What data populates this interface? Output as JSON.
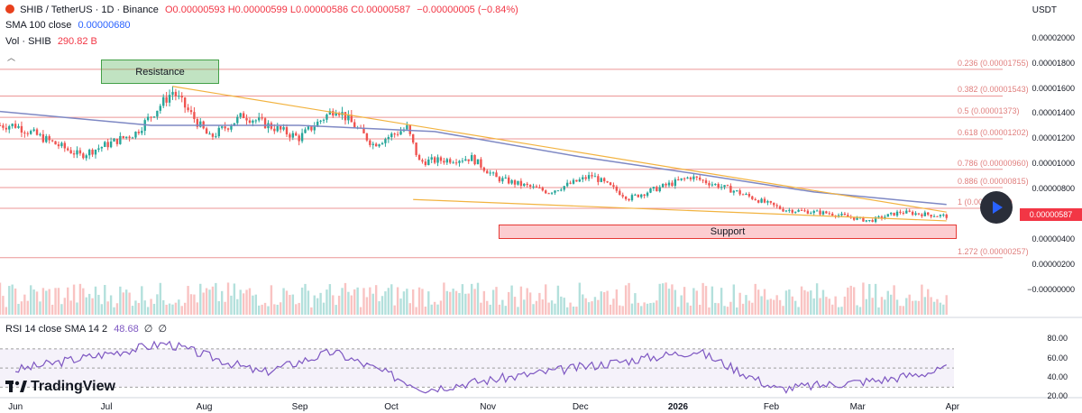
{
  "header": {
    "symbol": "SHIB / TetherUS · 1D · Binance",
    "ohlc": "O0.00000593 H0.00000599 L0.00000586 C0.00000587",
    "change": "−0.00000005 (−0.84%)",
    "sma_label": "SMA 100 close",
    "sma_value": "0.00000680",
    "vol_label": "Vol · SHIB",
    "vol_value": "290.82 B",
    "currency": "USDT"
  },
  "annotations": {
    "resistance": "Resistance",
    "support": "Support",
    "current_price": "0.00000587"
  },
  "fib_levels": [
    {
      "ratio": "0.236",
      "label": "0.236 (0.00001755)",
      "price": 1.755e-05
    },
    {
      "ratio": "0.382",
      "label": "0.382 (0.00001543)",
      "price": 1.543e-05
    },
    {
      "ratio": "0.5",
      "label": "0.5 (0.00001373)",
      "price": 1.373e-05
    },
    {
      "ratio": "0.618",
      "label": "0.618 (0.00001202)",
      "price": 1.202e-05
    },
    {
      "ratio": "0.786",
      "label": "0.786 (0.00000960)",
      "price": 9.6e-06
    },
    {
      "ratio": "0.886",
      "label": "0.886 (0.00000815)",
      "price": 8.15e-06
    },
    {
      "ratio": "1",
      "label": "1 (0.00000650)",
      "price": 6.5e-06
    },
    {
      "ratio": "1.272",
      "label": "1.272 (0.00000257)",
      "price": 2.57e-06
    }
  ],
  "price_axis": [
    "0.00002000",
    "0.00001800",
    "0.00001600",
    "0.00001400",
    "0.00001200",
    "0.00001000",
    "0.00000800",
    "0.00000400",
    "0.00000200",
    "−0.00000000"
  ],
  "rsi": {
    "label": "RSI 14 close SMA 14 2",
    "value": "48.68",
    "extra1": "∅",
    "extra2": "∅",
    "axis": [
      "80.00",
      "60.00",
      "40.00",
      "20.00"
    ]
  },
  "x_axis": [
    {
      "label": "Jun",
      "bold": false
    },
    {
      "label": "Jul",
      "bold": false
    },
    {
      "label": "Aug",
      "bold": false
    },
    {
      "label": "Sep",
      "bold": false
    },
    {
      "label": "Oct",
      "bold": false
    },
    {
      "label": "Nov",
      "bold": false
    },
    {
      "label": "Dec",
      "bold": false
    },
    {
      "label": "2026",
      "bold": true
    },
    {
      "label": "Feb",
      "bold": false
    },
    {
      "label": "Mar",
      "bold": false
    },
    {
      "label": "Apr",
      "bold": false
    }
  ],
  "brand": "TradingView",
  "colors": {
    "up": "#26a69a",
    "down": "#ef5350",
    "sma": "#7e88c4",
    "trend": "#f2b340",
    "fib": "#e57373",
    "rsi": "#7e57c2"
  },
  "chart_data": {
    "type": "candlestick",
    "title": "SHIB / TetherUS · 1D · Binance",
    "ylim": [
      -1e-07,
      2.07e-05
    ],
    "x_range": [
      "2025-05-27",
      "2026-04-02"
    ],
    "key_points": [
      {
        "date": "2025-06-01",
        "close": 1.31e-05
      },
      {
        "date": "2025-06-22",
        "close": 1.07e-05
      },
      {
        "date": "2025-07-10",
        "close": 1.25e-05
      },
      {
        "date": "2025-07-22",
        "close": 1.58e-05
      },
      {
        "date": "2025-08-03",
        "close": 1.21e-05
      },
      {
        "date": "2025-08-14",
        "close": 1.39e-05
      },
      {
        "date": "2025-09-01",
        "close": 1.21e-05
      },
      {
        "date": "2025-09-13",
        "close": 1.45e-05
      },
      {
        "date": "2025-09-25",
        "close": 1.16e-05
      },
      {
        "date": "2025-10-06",
        "close": 1.29e-05
      },
      {
        "date": "2025-10-10",
        "close": 1.02e-05
      },
      {
        "date": "2025-10-27",
        "close": 1.05e-05
      },
      {
        "date": "2025-11-04",
        "close": 8.9e-06
      },
      {
        "date": "2025-11-21",
        "close": 7.8e-06
      },
      {
        "date": "2025-12-05",
        "close": 9.1e-06
      },
      {
        "date": "2025-12-17",
        "close": 7.3e-06
      },
      {
        "date": "2026-01-06",
        "close": 9e-06
      },
      {
        "date": "2026-01-20",
        "close": 7.9e-06
      },
      {
        "date": "2026-02-05",
        "close": 6.4e-06
      },
      {
        "date": "2026-02-20",
        "close": 6.1e-06
      },
      {
        "date": "2026-03-05",
        "close": 5.5e-06
      },
      {
        "date": "2026-03-15",
        "close": 6.2e-06
      },
      {
        "date": "2026-03-30",
        "close": 5.87e-06
      }
    ],
    "sma100": [
      {
        "date": "2025-05-27",
        "value": 1.42e-05
      },
      {
        "date": "2025-07-15",
        "value": 1.31e-05
      },
      {
        "date": "2025-09-01",
        "value": 1.31e-05
      },
      {
        "date": "2025-10-15",
        "value": 1.26e-05
      },
      {
        "date": "2025-12-01",
        "value": 1.06e-05
      },
      {
        "date": "2026-01-06",
        "value": 9.3e-06
      },
      {
        "date": "2026-02-15",
        "value": 7.8e-06
      },
      {
        "date": "2026-03-30",
        "value": 6.8e-06
      }
    ],
    "rsi_points": [
      {
        "date": "2025-06-01",
        "value": 48
      },
      {
        "date": "2025-07-20",
        "value": 76
      },
      {
        "date": "2025-08-20",
        "value": 45
      },
      {
        "date": "2025-09-12",
        "value": 67
      },
      {
        "date": "2025-10-12",
        "value": 28
      },
      {
        "date": "2026-01-08",
        "value": 68
      },
      {
        "date": "2026-02-03",
        "value": 28
      },
      {
        "date": "2026-03-10",
        "value": 38
      },
      {
        "date": "2026-03-30",
        "value": 48.68
      }
    ],
    "rsi_bands": [
      30,
      50,
      70
    ]
  }
}
